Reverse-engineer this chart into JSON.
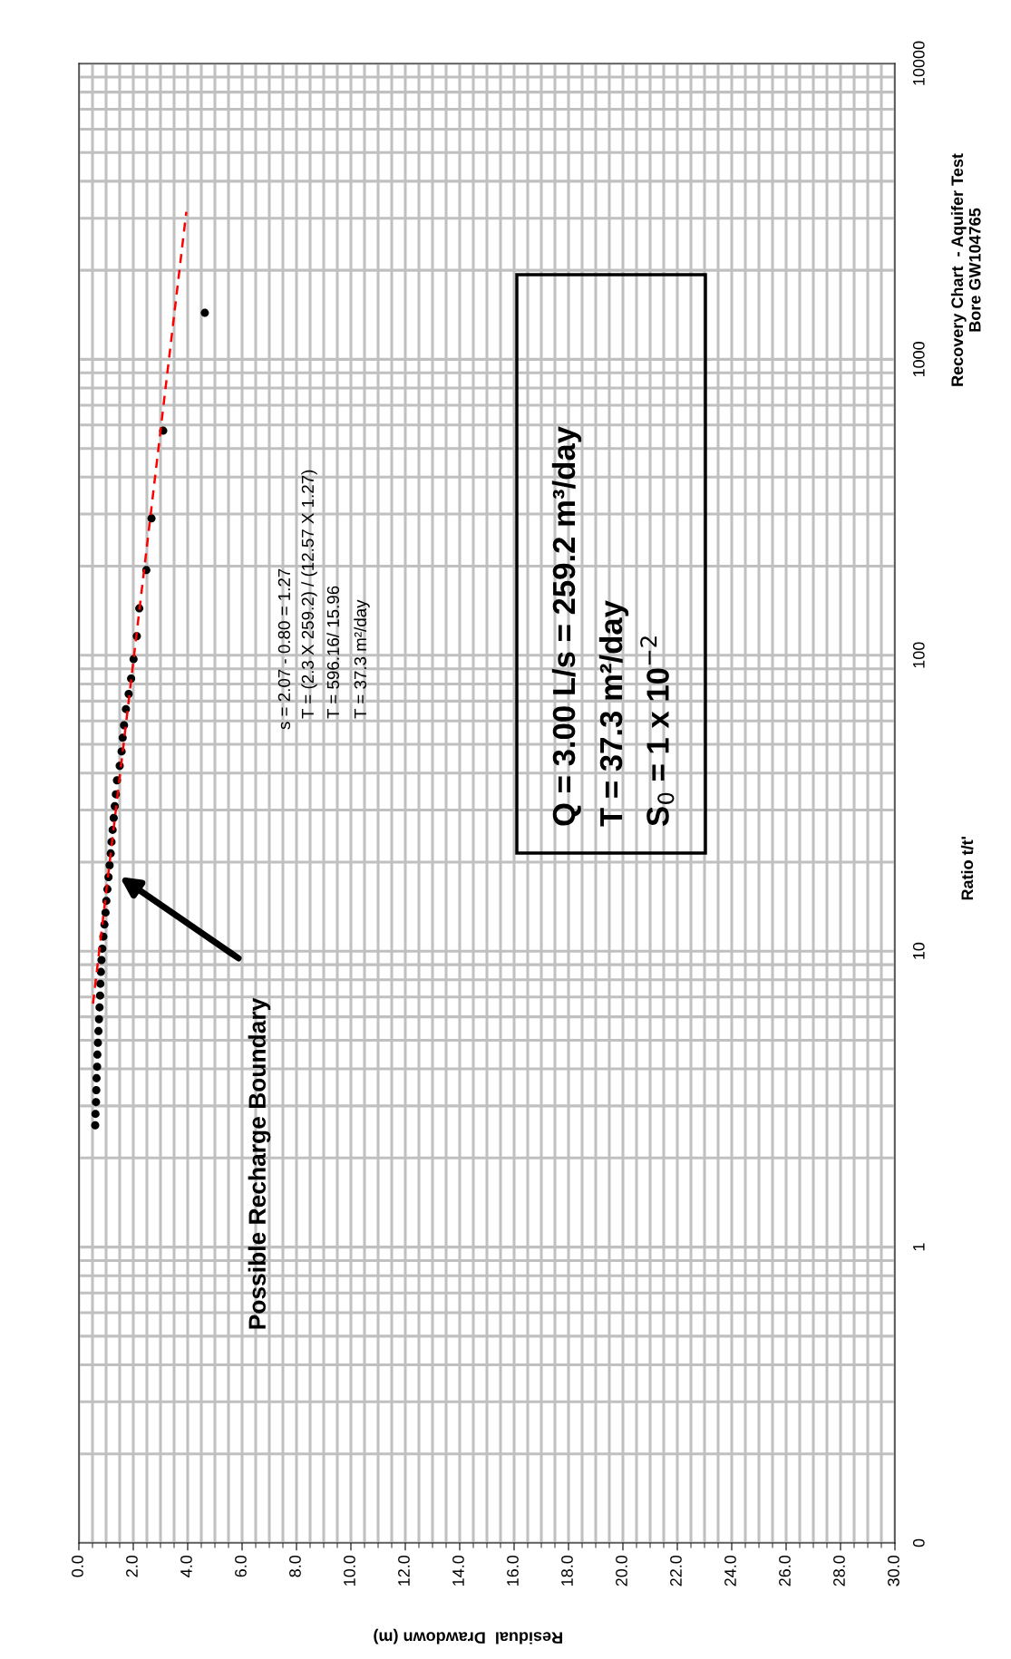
{
  "chart_data": {
    "type": "scatter",
    "title": "Recovery Chart  - Aquifer Test\nBore GW104765",
    "xlabel": "Residual  Drawdown (m)",
    "ylabel": "Ratio t/t'",
    "xlim": [
      0,
      30
    ],
    "ylim": [
      0.1,
      10000
    ],
    "log": "y",
    "grid": true,
    "xticks": [
      {
        "value": 0,
        "label": "0.0"
      },
      {
        "value": 2,
        "label": "2.0"
      },
      {
        "value": 4,
        "label": "4.0"
      },
      {
        "value": 6,
        "label": "6.0"
      },
      {
        "value": 8,
        "label": "8.0"
      },
      {
        "value": 10,
        "label": "10.0"
      },
      {
        "value": 12,
        "label": "12.0"
      },
      {
        "value": 14,
        "label": "14.0"
      },
      {
        "value": 16,
        "label": "16.0"
      },
      {
        "value": 18,
        "label": "18.0"
      },
      {
        "value": 20,
        "label": "20.0"
      },
      {
        "value": 22,
        "label": "22.0"
      },
      {
        "value": 24,
        "label": "24.0"
      },
      {
        "value": 26,
        "label": "26.0"
      },
      {
        "value": 28,
        "label": "28.0"
      },
      {
        "value": 30,
        "label": "30.0"
      }
    ],
    "yticks": [
      {
        "value": 0.1,
        "label": "0"
      },
      1,
      10,
      100,
      1000,
      10000
    ],
    "series": [
      {
        "marker": "circle",
        "color": "#000000",
        "x": [
          0.6,
          0.61,
          0.63,
          0.64,
          0.65,
          0.67,
          0.68,
          0.7,
          0.72,
          0.74,
          0.76,
          0.78,
          0.79,
          0.81,
          0.83,
          0.86,
          0.9,
          0.94,
          0.98,
          1.01,
          1.05,
          1.09,
          1.13,
          1.17,
          1.2,
          1.24,
          1.28,
          1.32,
          1.36,
          1.4,
          1.5,
          1.57,
          1.61,
          1.66,
          1.73,
          1.83,
          1.92,
          2.01,
          2.13,
          2.22,
          2.48,
          2.67,
          3.1,
          4.63
        ],
        "values": [
          2.58,
          2.82,
          3.09,
          3.39,
          3.72,
          4.07,
          4.47,
          4.9,
          5.37,
          5.89,
          6.46,
          7.08,
          7.76,
          8.51,
          9.33,
          10.2,
          11.2,
          12.3,
          13.5,
          14.8,
          16.2,
          17.8,
          19.5,
          21.4,
          23.4,
          25.7,
          28.2,
          30.9,
          33.9,
          37.8,
          42.3,
          47.3,
          52.6,
          58,
          65.8,
          74,
          83.4,
          97,
          116,
          144,
          194,
          290,
          574,
          1436
        ]
      },
      {
        "type": "line",
        "color": "#ff0000",
        "line_style": "dashed",
        "x": [
          0.52,
          3.95
        ],
        "values": [
          6.65,
          3155
        ]
      }
    ],
    "annotations": [
      "Possible Recharge Boundary",
      "s = 2.07 - 0.80 = 1.27",
      "T = (2.3 X 259.2) / (12.57 X 1.27)",
      "T = 596.16/ 15.96",
      "T = 37.3 m²/day",
      "Q = 3.00 L/s = 259.2 m³/day",
      "T = 37.3 m²/day",
      "S$_{0}$ = 1 x 10$^{−2}$"
    ]
  }
}
